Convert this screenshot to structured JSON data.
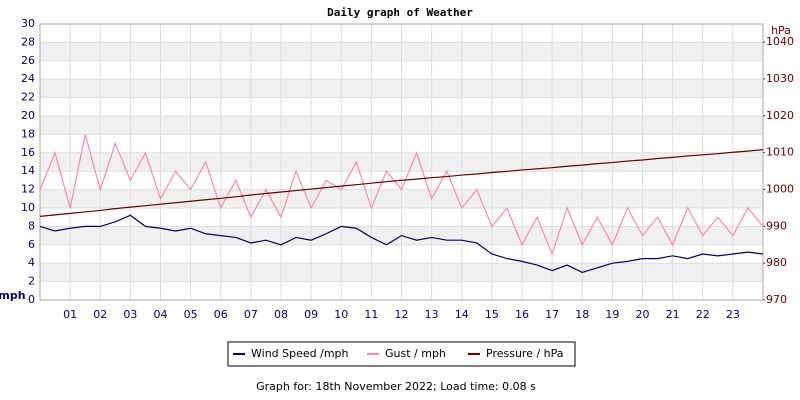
{
  "chart_data": {
    "type": "line",
    "title": "Daily graph of Weather",
    "y_label": "mph",
    "y2_label": "hPa",
    "footer": "Graph for: 18th November 2022; Load time: 0.08 s",
    "x": [
      0,
      0.5,
      1,
      1.5,
      2,
      2.5,
      3,
      3.5,
      4,
      4.5,
      5,
      5.5,
      6,
      6.5,
      7,
      7.5,
      8,
      8.5,
      9,
      9.5,
      10,
      10.5,
      11,
      11.5,
      12,
      12.5,
      13,
      13.5,
      14,
      14.5,
      15,
      15.5,
      16,
      16.5,
      17,
      17.5,
      18,
      18.5,
      19,
      19.5,
      20,
      20.5,
      21,
      21.5,
      22,
      22.5,
      23,
      23.5,
      24
    ],
    "xlim": [
      0,
      24
    ],
    "xticks": [
      {
        "value": 1,
        "label": "01"
      },
      {
        "value": 2,
        "label": "02"
      },
      {
        "value": 3,
        "label": "03"
      },
      {
        "value": 4,
        "label": "04"
      },
      {
        "value": 5,
        "label": "05"
      },
      {
        "value": 6,
        "label": "06"
      },
      {
        "value": 7,
        "label": "07"
      },
      {
        "value": 8,
        "label": "08"
      },
      {
        "value": 9,
        "label": "09"
      },
      10,
      11,
      12,
      13,
      14,
      15,
      16,
      17,
      18,
      19,
      20,
      21,
      22,
      23
    ],
    "ylim": [
      0,
      30
    ],
    "yticks": [
      0,
      2,
      4,
      6,
      8,
      10,
      12,
      14,
      16,
      18,
      20,
      22,
      24,
      26,
      28,
      30
    ],
    "y2lim": [
      970,
      1044.9
    ],
    "y2ticks": [
      970,
      980,
      990,
      1000,
      1010,
      1020,
      1030,
      1040
    ],
    "grid": true,
    "series": [
      {
        "name": "Wind Speed /mph",
        "color": "#000066",
        "values": [
          8,
          7.5,
          7.8,
          8,
          8,
          8.5,
          9.2,
          8,
          7.8,
          7.5,
          7.8,
          7.2,
          7,
          6.8,
          6.2,
          6.5,
          6,
          6.8,
          6.5,
          7.2,
          8,
          7.8,
          6.8,
          6,
          7,
          6.5,
          6.8,
          6.5,
          6.5,
          6.2,
          5,
          4.5,
          4.2,
          3.8,
          3.2,
          3.8,
          3,
          3.5,
          4,
          4.2,
          4.5,
          4.5,
          4.8,
          4.5,
          5,
          4.8,
          5,
          5.2,
          5
        ]
      },
      {
        "name": "Gust / mph",
        "color": "#ff88aa",
        "values": [
          12,
          16,
          10,
          18,
          12,
          17,
          13,
          16,
          11,
          14,
          12,
          15,
          10,
          13,
          9,
          12,
          9,
          14,
          10,
          13,
          12,
          15,
          10,
          14,
          12,
          16,
          11,
          14,
          10,
          12,
          8,
          10,
          6,
          9,
          5,
          10,
          6,
          9,
          6,
          10,
          7,
          9,
          6,
          10,
          7,
          9,
          7,
          10,
          8
        ]
      },
      {
        "name": "Pressure / hPa",
        "color": "#660000",
        "axis": "y2",
        "values": [
          992.7,
          993.1,
          993.5,
          993.9,
          994.3,
          994.8,
          995.2,
          995.6,
          996.0,
          996.4,
          996.8,
          997.2,
          997.6,
          998.0,
          998.5,
          998.9,
          999.3,
          999.7,
          1000.1,
          1000.5,
          1000.9,
          1001.3,
          1001.7,
          1002.1,
          1002.5,
          1002.8,
          1003.2,
          1003.5,
          1003.9,
          1004.2,
          1004.6,
          1004.9,
          1005.3,
          1005.6,
          1005.9,
          1006.3,
          1006.6,
          1007.0,
          1007.3,
          1007.7,
          1008.0,
          1008.4,
          1008.7,
          1009.1,
          1009.4,
          1009.7,
          1010.1,
          1010.4,
          1010.8
        ]
      }
    ]
  }
}
